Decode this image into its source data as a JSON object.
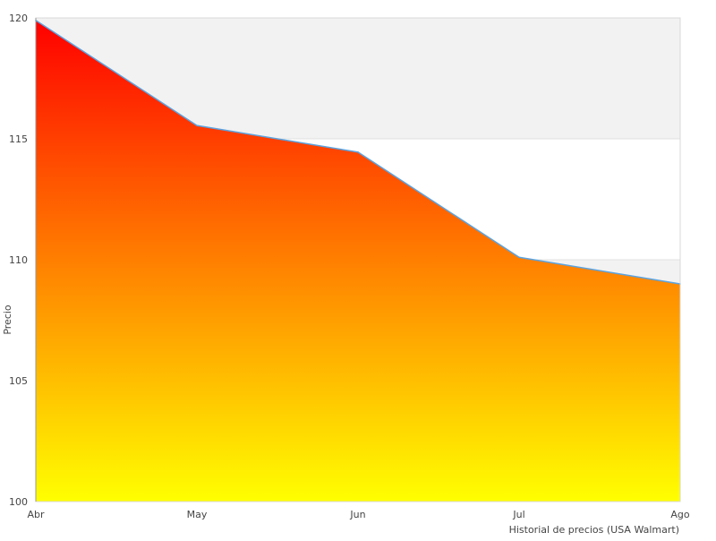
{
  "chart_data": {
    "type": "area",
    "title": "",
    "xlabel": "Historial de precios (USA Walmart)",
    "ylabel": "Precio",
    "categories": [
      "Abr",
      "May",
      "Jun",
      "Jul",
      "Ago"
    ],
    "series": [
      {
        "values": [
          119.9,
          115.55,
          114.45,
          110.1,
          109.0
        ]
      }
    ],
    "ylim": [
      100,
      120
    ],
    "yticks": [
      100,
      105,
      110,
      115,
      120
    ],
    "grid": "alternating horizontal bands",
    "legend": "none",
    "colors": {
      "line": "#5ba3e0",
      "fill_top": "#ff0000",
      "fill_bottom": "#ffff00",
      "band": "#f2f2f2",
      "axis": "#d8d8d8"
    }
  }
}
